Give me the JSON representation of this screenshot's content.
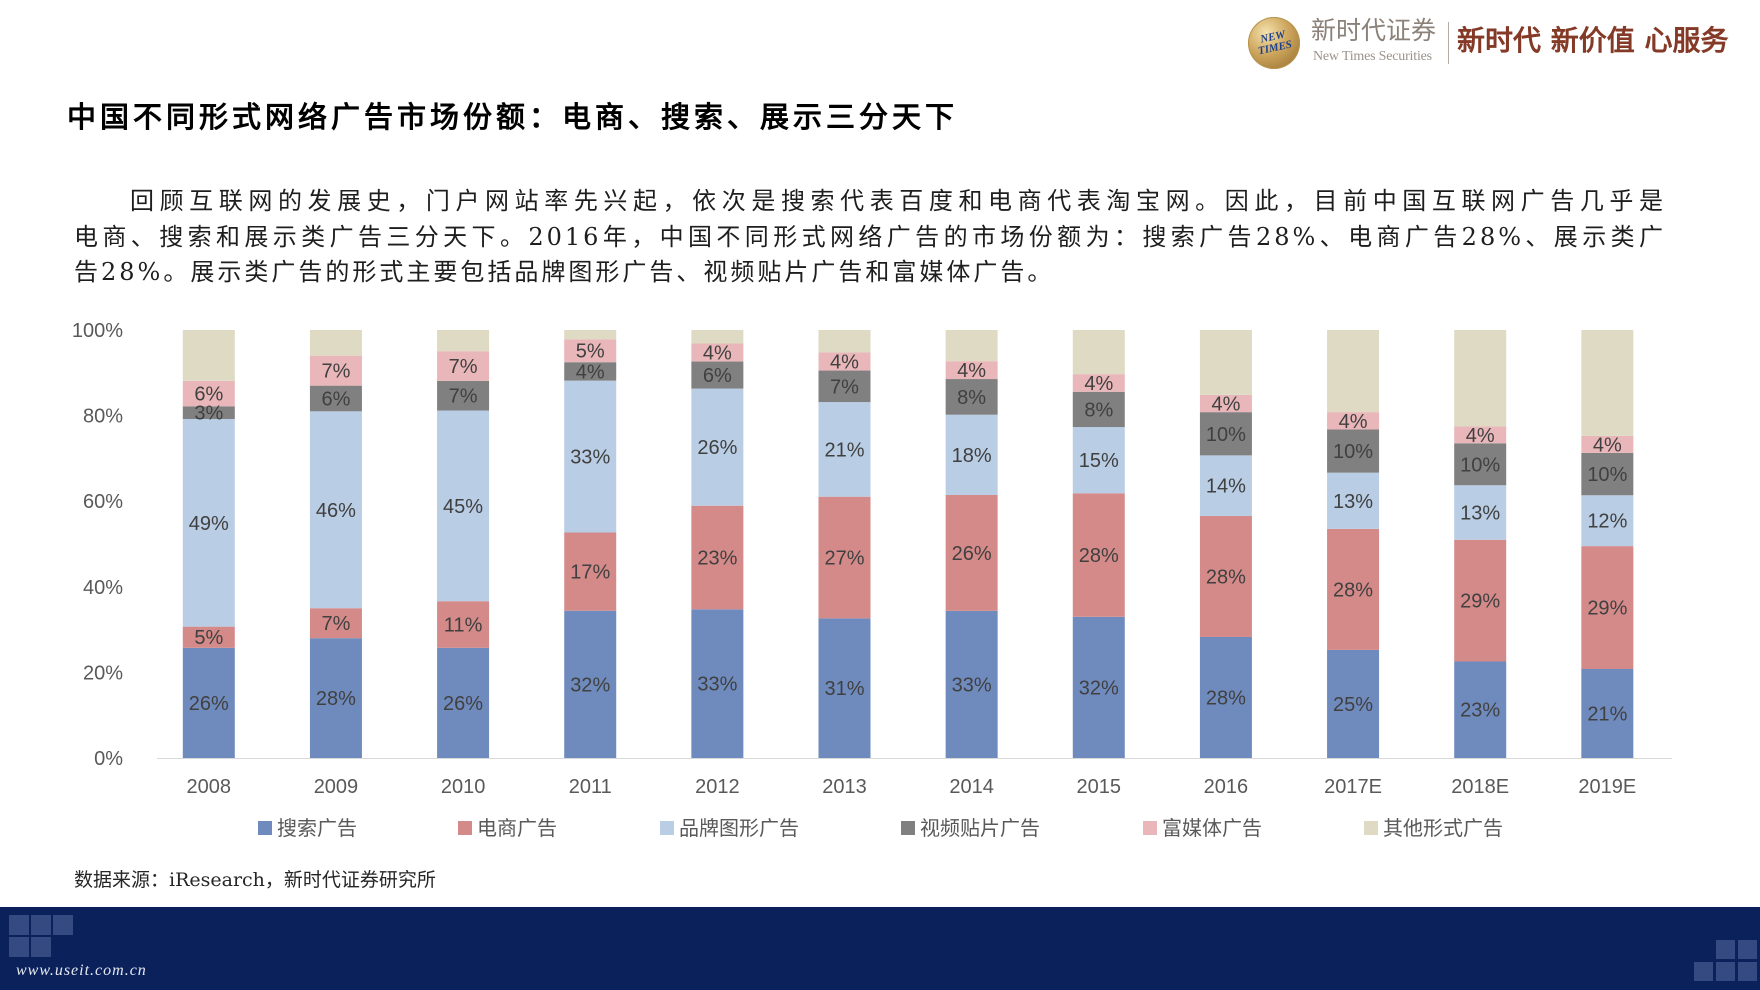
{
  "header": {
    "logo": {
      "emblem_text": "NEW TIMES",
      "name_cn": "新时代证券",
      "name_en": "New Times Securities"
    },
    "slogan": "新时代 新价值 心服务"
  },
  "slide": {
    "title": "中国不同形式网络广告市场份额：电商、搜索、展示三分天下",
    "paragraph_lines": [
      "回顾互联网的发展史，门户网站率先兴起，依次是搜索代表百度和电商代表淘宝网。因此，目前中国互联网广告几乎是",
      "电商、搜索和展示类广告三分天下。2016年，中国不同形式网络广告的市场份额为：搜索广告28%、电商广告28%、展示类广",
      "告28%。展示类广告的形式主要包括品牌图形广告、视频贴片广告和富媒体广告。"
    ],
    "source": "数据来源：iResearch，新时代证券研究所"
  },
  "footer": {
    "watermark": "www.useit.com.cn"
  },
  "brand_colors": {
    "navy": "#0b215c",
    "slogan": "#843a27"
  },
  "chart_data": {
    "type": "bar",
    "stacked": true,
    "percent_stacked": true,
    "categories": [
      "2008",
      "2009",
      "2010",
      "2011",
      "2012",
      "2013",
      "2014",
      "2015",
      "2016",
      "2017E",
      "2018E",
      "2019E"
    ],
    "ylim": [
      0,
      100
    ],
    "ytick_labels": [
      "0%",
      "20%",
      "40%",
      "60%",
      "80%",
      "100%"
    ],
    "grid": false,
    "legend": "bottom",
    "series": [
      {
        "name": "搜索广告",
        "color": "#6f8bbe",
        "data_labels": true,
        "values": [
          26,
          28,
          26,
          32,
          33,
          31,
          33,
          32,
          28,
          25,
          23,
          21
        ]
      },
      {
        "name": "电商广告",
        "color": "#d48a89",
        "data_labels": true,
        "values": [
          5,
          7,
          11,
          17,
          23,
          27,
          26,
          28,
          28,
          28,
          29,
          29
        ]
      },
      {
        "name": "品牌图形广告",
        "color": "#b9cde5",
        "data_labels": true,
        "values": [
          49,
          46,
          45,
          33,
          26,
          21,
          18,
          15,
          14,
          13,
          13,
          12
        ]
      },
      {
        "name": "视频贴片广告",
        "color": "#808080",
        "data_labels": true,
        "values": [
          3,
          6,
          7,
          4,
          6,
          7,
          8,
          8,
          10,
          10,
          10,
          10
        ]
      },
      {
        "name": "富媒体广告",
        "color": "#e9b7b9",
        "data_labels": true,
        "values": [
          6,
          7,
          7,
          5,
          4,
          4,
          4,
          4,
          4,
          4,
          4,
          4
        ]
      },
      {
        "name": "其他形式广告",
        "color": "#dedac4",
        "data_labels": false,
        "values": [
          12,
          6,
          5,
          2,
          3,
          5,
          7,
          10,
          15,
          19,
          23,
          25
        ]
      }
    ]
  }
}
